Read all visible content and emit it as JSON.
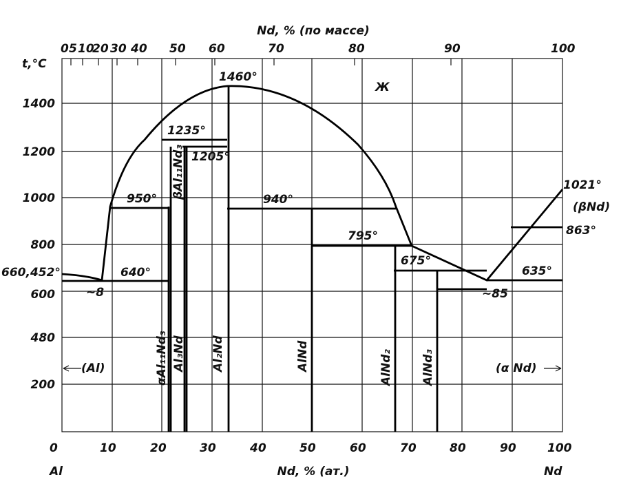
{
  "axes": {
    "top_title": "Nd, % (по массе)",
    "top_ticks": [
      "0",
      "5",
      "10",
      "20",
      "30",
      "40",
      "50",
      "60",
      "70",
      "80",
      "90",
      "100"
    ],
    "left_title": "t,°C",
    "left_ticks": [
      "1400",
      "1200",
      "1000",
      "800",
      "600",
      "480",
      "200"
    ],
    "bottom_ticks": [
      "0",
      "10",
      "20",
      "30",
      "40",
      "50",
      "60",
      "70",
      "80",
      "90",
      "100"
    ],
    "bottom_title": "Nd, % (ат.)",
    "bottom_left": "Al",
    "bottom_right": "Nd"
  },
  "temperatures": [
    "1460°",
    "1235°",
    "1205°",
    "950°",
    "940°",
    "795°",
    "675°",
    "635°",
    "640°",
    "660,452°",
    "1021°",
    "863°",
    "~8",
    "~85"
  ],
  "phases": [
    "Ж",
    "βAl₁₁Nd₃",
    "αAl₁₁Nd₃",
    "Al₃Nd",
    "Al₂Nd",
    "AlNd",
    "AlNd₂",
    "AlNd₃",
    "(Al)",
    "(α Nd)",
    "(βNd)"
  ]
}
